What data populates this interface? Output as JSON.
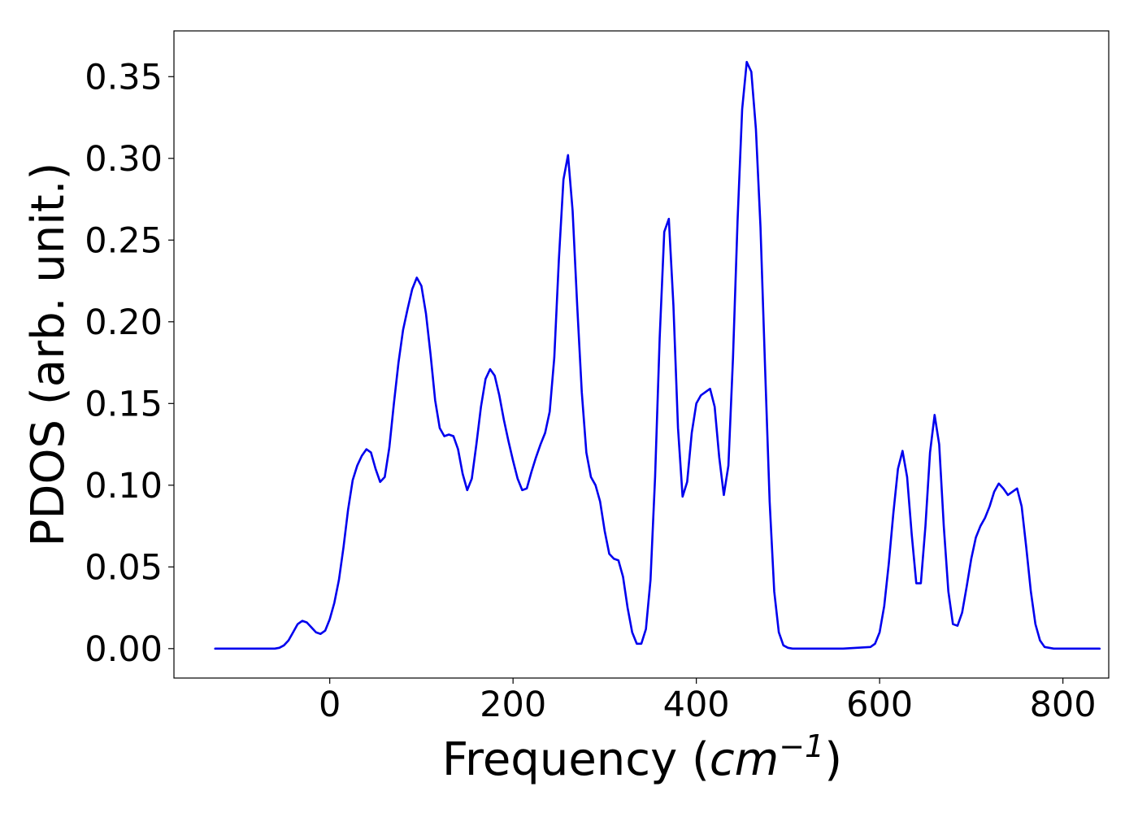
{
  "chart_data": {
    "type": "line",
    "title": "",
    "xlabel_prefix": "Frequency (",
    "xlabel_math": "cm",
    "xlabel_sup": "−1",
    "xlabel_suffix": ")",
    "ylabel": "PDOS (arb. unit.)",
    "xlim": [
      -170,
      850
    ],
    "ylim": [
      -0.018,
      0.378
    ],
    "xticks": [
      0,
      200,
      400,
      600,
      800
    ],
    "xtick_labels": [
      "0",
      "200",
      "400",
      "600",
      "800"
    ],
    "yticks": [
      0,
      0.05,
      0.1,
      0.15,
      0.2,
      0.25,
      0.3,
      0.35
    ],
    "ytick_labels": [
      "0.00",
      "0.05",
      "0.10",
      "0.15",
      "0.20",
      "0.25",
      "0.30",
      "0.35"
    ],
    "grid": false,
    "legend": "none",
    "line_color": "#0000ee",
    "series": [
      {
        "x": [
          -125,
          -100,
          -80,
          -60,
          -55,
          -50,
          -45,
          -40,
          -35,
          -30,
          -25,
          -20,
          -15,
          -10,
          -5,
          0,
          5,
          10,
          15,
          20,
          25,
          30,
          35,
          40,
          45,
          50,
          55,
          60,
          65,
          70,
          75,
          80,
          85,
          90,
          95,
          100,
          105,
          110,
          115,
          120,
          125,
          130,
          135,
          140,
          145,
          150,
          155,
          160,
          165,
          170,
          175,
          180,
          185,
          190,
          195,
          200,
          205,
          210,
          215,
          220,
          225,
          230,
          235,
          240,
          245,
          250,
          255,
          260,
          265,
          270,
          275,
          280,
          285,
          290,
          295,
          300,
          305,
          310,
          315,
          320,
          325,
          330,
          335,
          340,
          345,
          350,
          355,
          360,
          365,
          370,
          375,
          380,
          385,
          390,
          395,
          400,
          405,
          410,
          415,
          420,
          425,
          430,
          435,
          440,
          445,
          450,
          455,
          460,
          465,
          470,
          475,
          480,
          485,
          490,
          495,
          500,
          505,
          510,
          520,
          560,
          590,
          595,
          600,
          605,
          610,
          615,
          620,
          625,
          630,
          635,
          640,
          645,
          650,
          655,
          660,
          665,
          670,
          675,
          680,
          685,
          690,
          695,
          700,
          705,
          710,
          715,
          720,
          725,
          730,
          735,
          740,
          745,
          750,
          755,
          760,
          765,
          770,
          775,
          780,
          790,
          840
        ],
        "y": [
          0.0,
          0.0,
          0.0,
          0.0,
          0.0005,
          0.002,
          0.005,
          0.01,
          0.015,
          0.017,
          0.016,
          0.013,
          0.01,
          0.009,
          0.011,
          0.018,
          0.028,
          0.042,
          0.062,
          0.085,
          0.103,
          0.112,
          0.118,
          0.122,
          0.12,
          0.11,
          0.102,
          0.105,
          0.123,
          0.15,
          0.175,
          0.195,
          0.208,
          0.22,
          0.227,
          0.222,
          0.205,
          0.18,
          0.152,
          0.135,
          0.13,
          0.131,
          0.13,
          0.122,
          0.107,
          0.097,
          0.104,
          0.125,
          0.148,
          0.165,
          0.171,
          0.167,
          0.155,
          0.14,
          0.127,
          0.115,
          0.104,
          0.097,
          0.098,
          0.108,
          0.117,
          0.125,
          0.132,
          0.145,
          0.178,
          0.238,
          0.287,
          0.302,
          0.268,
          0.21,
          0.157,
          0.12,
          0.105,
          0.1,
          0.09,
          0.072,
          0.058,
          0.055,
          0.054,
          0.044,
          0.025,
          0.01,
          0.003,
          0.003,
          0.012,
          0.042,
          0.105,
          0.19,
          0.255,
          0.263,
          0.21,
          0.135,
          0.093,
          0.102,
          0.132,
          0.15,
          0.155,
          0.157,
          0.159,
          0.148,
          0.117,
          0.094,
          0.112,
          0.178,
          0.262,
          0.33,
          0.359,
          0.353,
          0.318,
          0.258,
          0.172,
          0.09,
          0.035,
          0.01,
          0.002,
          0.0005,
          0.0,
          0.0,
          0.0,
          0.0,
          0.001,
          0.003,
          0.01,
          0.026,
          0.052,
          0.083,
          0.11,
          0.121,
          0.105,
          0.07,
          0.04,
          0.04,
          0.075,
          0.12,
          0.143,
          0.125,
          0.075,
          0.035,
          0.015,
          0.014,
          0.022,
          0.038,
          0.055,
          0.068,
          0.075,
          0.08,
          0.087,
          0.096,
          0.101,
          0.098,
          0.094,
          0.096,
          0.098,
          0.087,
          0.062,
          0.035,
          0.015,
          0.005,
          0.001,
          0.0,
          0.0
        ]
      }
    ]
  }
}
